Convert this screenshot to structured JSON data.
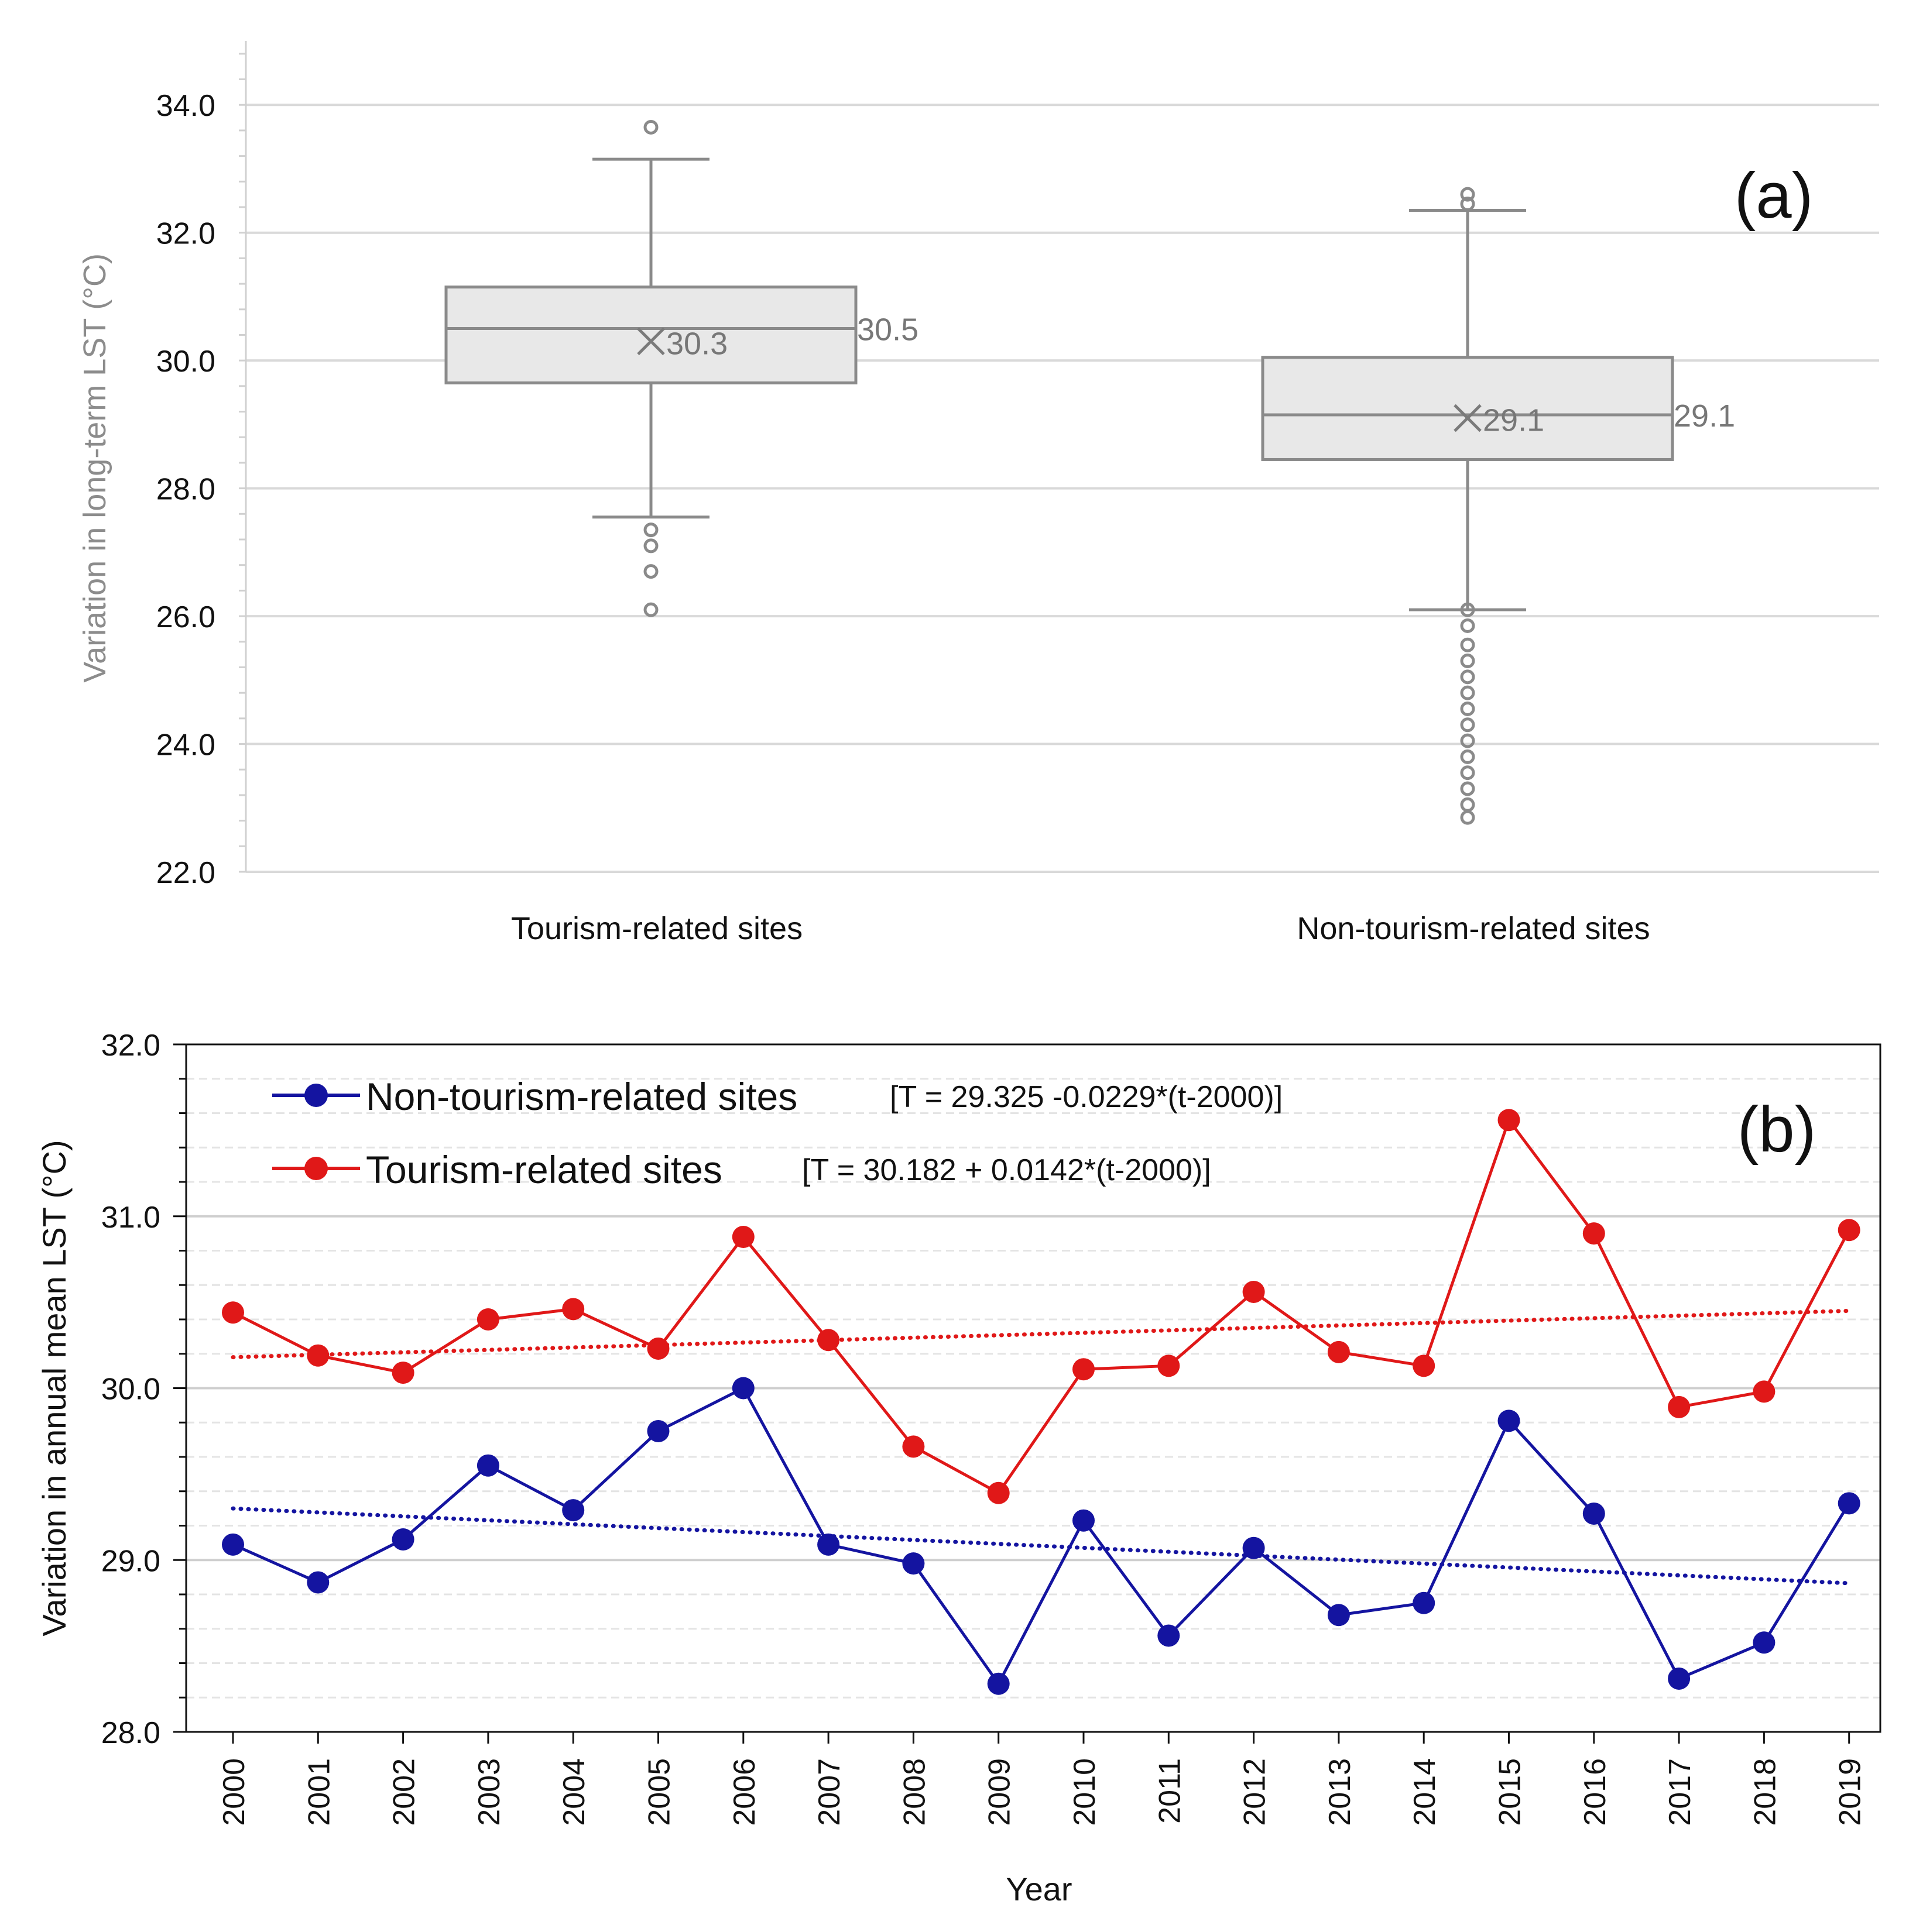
{
  "chart_data": [
    {
      "panel": "(a)",
      "type": "box",
      "ylabel": "Variation in long-term LST (°C)",
      "ylim": [
        22.0,
        35.0
      ],
      "yticks": [
        "22.0",
        "24.0",
        "26.0",
        "28.0",
        "30.0",
        "32.0",
        "34.0"
      ],
      "grid": true,
      "categories": [
        "Tourism-related sites",
        "Non-tourism-related sites"
      ],
      "boxes": [
        {
          "name": "Tourism-related sites",
          "whisker_low": 27.55,
          "q1": 29.65,
          "median": 30.5,
          "q3": 31.15,
          "whisker_high": 33.15,
          "mean": 30.3,
          "mean_label": "30.3",
          "median_label": "30.5",
          "outliers": [
            33.65,
            27.35,
            27.1,
            26.7,
            26.1
          ]
        },
        {
          "name": "Non-tourism-related sites",
          "whisker_low": 26.1,
          "q1": 28.45,
          "median": 29.15,
          "q3": 30.05,
          "whisker_high": 32.35,
          "mean": 29.1,
          "mean_label": "29.1",
          "median_label": "29.1",
          "outliers": [
            32.6,
            32.45,
            26.1,
            25.85,
            25.55,
            25.3,
            25.05,
            24.8,
            24.55,
            24.3,
            24.05,
            23.8,
            23.55,
            23.3,
            23.05,
            22.85
          ]
        }
      ]
    },
    {
      "panel": "(b)",
      "type": "line",
      "xlabel": "Year",
      "ylabel": "Variation in annual mean LST (°C)",
      "ylim": [
        28.0,
        32.0
      ],
      "yticks": [
        "28.0",
        "29.0",
        "30.0",
        "31.0",
        "32.0"
      ],
      "grid": true,
      "legend_position": "top-left",
      "x": [
        2000,
        2001,
        2002,
        2003,
        2004,
        2005,
        2006,
        2007,
        2008,
        2009,
        2010,
        2011,
        2012,
        2013,
        2014,
        2015,
        2016,
        2017,
        2018,
        2019
      ],
      "series": [
        {
          "name": "Non-tourism-related sites",
          "equation": "[T = 29.325 -0.0229*(t-2000)]",
          "color": "#1414a0",
          "trend": {
            "intercept": 29.3,
            "slope": -0.0229
          },
          "values": [
            29.09,
            28.87,
            29.12,
            29.55,
            29.29,
            29.75,
            30.0,
            29.09,
            28.98,
            28.28,
            29.23,
            28.56,
            29.07,
            28.68,
            28.75,
            29.81,
            29.27,
            28.31,
            28.52,
            29.33
          ]
        },
        {
          "name": "Tourism-related sites",
          "equation": "[T = 30.182 + 0.0142*(t-2000)]",
          "color": "#e01818",
          "trend": {
            "intercept": 30.18,
            "slope": 0.0142
          },
          "values": [
            30.44,
            30.19,
            30.09,
            30.4,
            30.46,
            30.23,
            30.88,
            30.28,
            29.66,
            29.39,
            30.11,
            30.13,
            30.56,
            30.21,
            30.13,
            31.56,
            30.9,
            29.89,
            29.98,
            30.92
          ]
        }
      ]
    }
  ]
}
